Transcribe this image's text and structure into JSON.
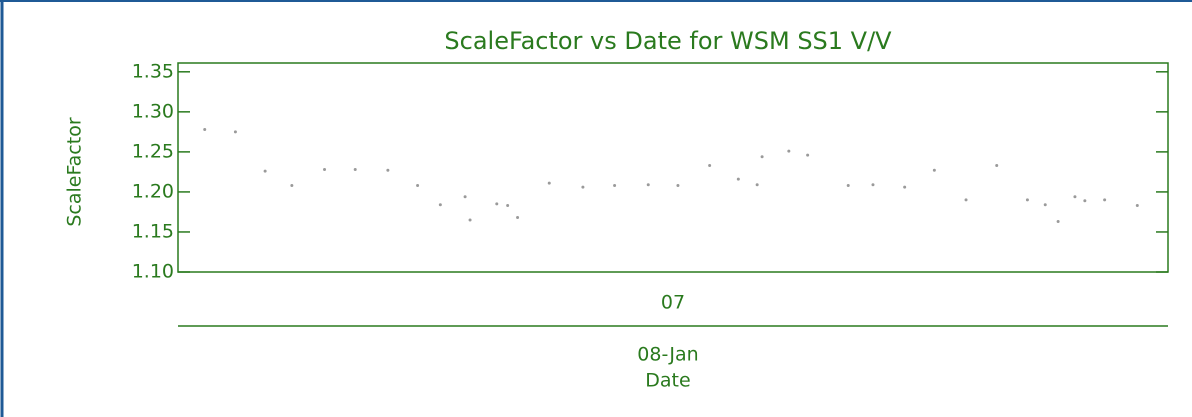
{
  "chart_data": {
    "type": "scatter",
    "title": "ScaleFactor vs Date for WSM SS1 V/V",
    "ylabel": "ScaleFactor",
    "xlabel": "Date",
    "x_date_label": "08-Jan",
    "color": "#2a7a1e",
    "marker_color": "#9a9a9a",
    "xlim": [
      0,
      100
    ],
    "xticks": [
      {
        "value": 50,
        "label": "07"
      }
    ],
    "ylim": [
      1.1,
      1.361
    ],
    "yticks": [
      {
        "value": 1.1,
        "label": "1.10"
      },
      1.15,
      {
        "value": 1.2,
        "label": "1.20"
      },
      1.25,
      {
        "value": 1.3,
        "label": "1.30"
      },
      1.35
    ],
    "x": [
      2.7,
      5.8,
      8.8,
      11.5,
      14.8,
      17.9,
      21.2,
      24.2,
      26.5,
      29.0,
      29.5,
      32.2,
      33.3,
      34.3,
      37.5,
      40.9,
      44.1,
      47.5,
      50.5,
      53.7,
      56.6,
      58.5,
      59.0,
      61.7,
      63.6,
      67.7,
      70.2,
      73.4,
      76.4,
      79.6,
      82.7,
      85.8,
      87.6,
      88.9,
      90.6,
      91.6,
      93.6,
      96.9
    ],
    "values": [
      1.278,
      1.275,
      1.226,
      1.208,
      1.228,
      1.228,
      1.227,
      1.208,
      1.184,
      1.194,
      1.165,
      1.185,
      1.183,
      1.168,
      1.211,
      1.206,
      1.208,
      1.209,
      1.208,
      1.233,
      1.216,
      1.209,
      1.244,
      1.251,
      1.246,
      1.208,
      1.209,
      1.206,
      1.227,
      1.19,
      1.233,
      1.19,
      1.184,
      1.163,
      1.194,
      1.189,
      1.19,
      1.183
    ]
  }
}
